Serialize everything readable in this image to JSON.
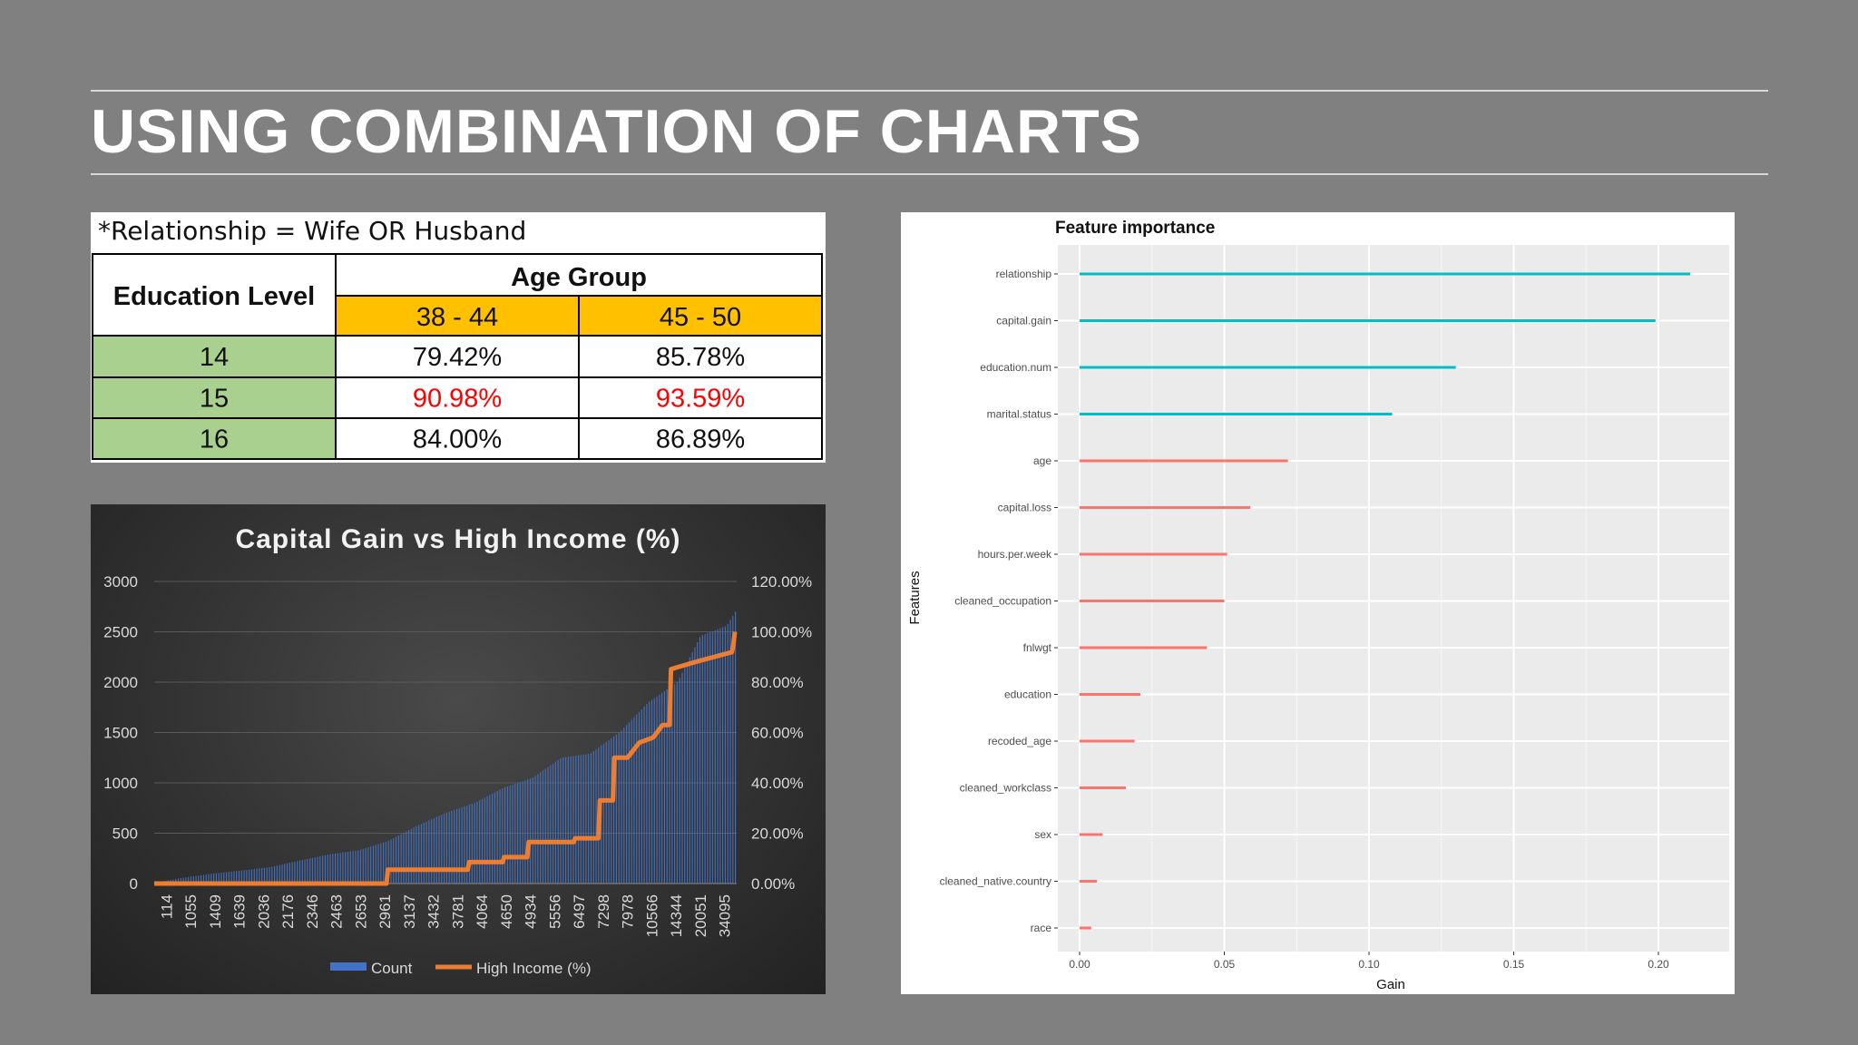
{
  "slide": {
    "title": "USING COMBINATION OF CHARTS"
  },
  "table": {
    "note": "*Relationship = Wife OR Husband",
    "row_header": "Education Level",
    "group_header": "Age Group",
    "columns": [
      "38 - 44",
      "45 - 50"
    ],
    "rows": [
      {
        "level": "14",
        "values": [
          "79.42%",
          "85.78%"
        ],
        "highlight": false
      },
      {
        "level": "15",
        "values": [
          "90.98%",
          "93.59%"
        ],
        "highlight": true
      },
      {
        "level": "16",
        "values": [
          "84.00%",
          "86.89%"
        ],
        "highlight": false
      }
    ],
    "colors": {
      "header_fill": "#ffc000",
      "level_fill": "#a9d08e",
      "highlight_text": "#ff0000"
    }
  },
  "chart_data": [
    {
      "type": "bar",
      "title": "Capital Gain vs High Income (%)",
      "categories": [
        "114",
        "1055",
        "1409",
        "1639",
        "2036",
        "2176",
        "2346",
        "2463",
        "2653",
        "2961",
        "3137",
        "3432",
        "3781",
        "4064",
        "4650",
        "4934",
        "5556",
        "6497",
        "7298",
        "7978",
        "10566",
        "14344",
        "20051",
        "34095"
      ],
      "series": [
        {
          "name": "Count",
          "axis": "left",
          "kind": "bar",
          "color": "#4472c4"
        },
        {
          "name": "High Income (%)",
          "axis": "right",
          "kind": "line",
          "color": "#ed7d31"
        }
      ],
      "count_profile": [
        [
          0,
          10
        ],
        [
          0.05,
          60
        ],
        [
          0.1,
          100
        ],
        [
          0.15,
          130
        ],
        [
          0.2,
          165
        ],
        [
          0.25,
          230
        ],
        [
          0.3,
          290
        ],
        [
          0.35,
          330
        ],
        [
          0.4,
          420
        ],
        [
          0.45,
          570
        ],
        [
          0.5,
          700
        ],
        [
          0.55,
          800
        ],
        [
          0.6,
          950
        ],
        [
          0.65,
          1050
        ],
        [
          0.7,
          1250
        ],
        [
          0.75,
          1290
        ],
        [
          0.8,
          1500
        ],
        [
          0.85,
          1800
        ],
        [
          0.9,
          2000
        ],
        [
          0.94,
          2460
        ],
        [
          0.985,
          2560
        ],
        [
          1,
          2700
        ]
      ],
      "income_profile": [
        [
          0,
          0
        ],
        [
          0.5,
          0
        ],
        [
          0.5,
          5.5
        ],
        [
          0.675,
          5.5
        ],
        [
          0.675,
          8.5
        ],
        [
          0.75,
          8.5
        ],
        [
          0.75,
          10.5
        ],
        [
          0.8,
          10.5
        ],
        [
          0.8,
          16.5
        ],
        [
          0.9,
          16.5
        ],
        [
          0.9,
          18
        ],
        [
          0.955,
          18
        ],
        [
          0.955,
          33
        ],
        [
          0.985,
          33
        ],
        [
          0.985,
          50
        ],
        [
          1.015,
          50
        ],
        [
          1.04,
          56
        ],
        [
          1.07,
          58
        ],
        [
          1.09,
          63
        ],
        [
          1.105,
          63
        ],
        [
          1.105,
          85
        ],
        [
          1.16,
          88
        ],
        [
          1.2,
          90
        ],
        [
          1.24,
          92
        ],
        [
          1.245,
          100
        ]
      ],
      "left_axis": {
        "ticks": [
          "0",
          "500",
          "1000",
          "1500",
          "2000",
          "2500",
          "3000"
        ],
        "range": [
          0,
          3000
        ]
      },
      "right_axis": {
        "ticks": [
          "0.00%",
          "20.00%",
          "40.00%",
          "60.00%",
          "80.00%",
          "100.00%",
          "120.00%"
        ],
        "range": [
          0,
          120
        ]
      },
      "legend": "bottom",
      "gridlines": true
    },
    {
      "type": "bar",
      "orientation": "horizontal",
      "title": "Feature importance",
      "xlabel": "Gain",
      "ylabel": "Features",
      "categories": [
        "relationship",
        "capital.gain",
        "education.num",
        "marital.status",
        "age",
        "capital.loss",
        "hours.per.week",
        "cleaned_occupation",
        "fnlwgt",
        "education",
        "recoded_age",
        "cleaned_workclass",
        "sex",
        "cleaned_native.country",
        "race"
      ],
      "values": [
        0.211,
        0.199,
        0.13,
        0.108,
        0.072,
        0.059,
        0.051,
        0.05,
        0.044,
        0.021,
        0.019,
        0.016,
        0.008,
        0.006,
        0.004
      ],
      "clusters": [
        1,
        1,
        1,
        1,
        2,
        2,
        2,
        2,
        2,
        2,
        2,
        2,
        2,
        2,
        2
      ],
      "cluster_colors": {
        "1": "#00bfc4",
        "2": "#f8766d"
      },
      "x_ticks": [
        "0.00",
        "0.05",
        "0.10",
        "0.15",
        "0.20"
      ],
      "xlim": [
        0,
        0.22
      ],
      "gridlines": true
    }
  ]
}
